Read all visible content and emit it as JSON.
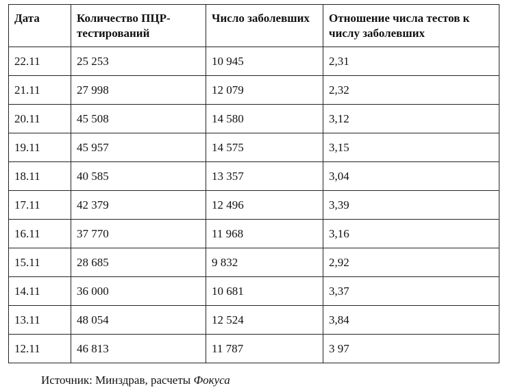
{
  "table": {
    "headers": [
      "Дата",
      "Количество ПЦР-тестирований",
      "Число заболевших",
      "Отношение числа тестов к числу заболевших"
    ],
    "rows": [
      [
        "22.11",
        "25 253",
        "10 945",
        "2,31"
      ],
      [
        "21.11",
        "27 998",
        "12 079",
        "2,32"
      ],
      [
        "20.11",
        "45 508",
        "14 580",
        "3,12"
      ],
      [
        "19.11",
        "45 957",
        "14 575",
        "3,15"
      ],
      [
        "18.11",
        "40 585",
        "13 357",
        "3,04"
      ],
      [
        "17.11",
        "42 379",
        "12 496",
        "3,39"
      ],
      [
        "16.11",
        "37 770",
        "11 968",
        "3,16"
      ],
      [
        "15.11",
        "28 685",
        "9 832",
        "2,92"
      ],
      [
        "14.11",
        "36 000",
        "10 681",
        "3,37"
      ],
      [
        "13.11",
        "48 054",
        "12 524",
        "3,84"
      ],
      [
        "12.11",
        "46 813",
        "11 787",
        "3 97"
      ]
    ]
  },
  "source": {
    "prefix": "Источник: Минздрав, расчеты ",
    "emphasis": "Фокуса"
  },
  "colors": {
    "border": "#222222",
    "text": "#111111",
    "background": "#ffffff"
  }
}
